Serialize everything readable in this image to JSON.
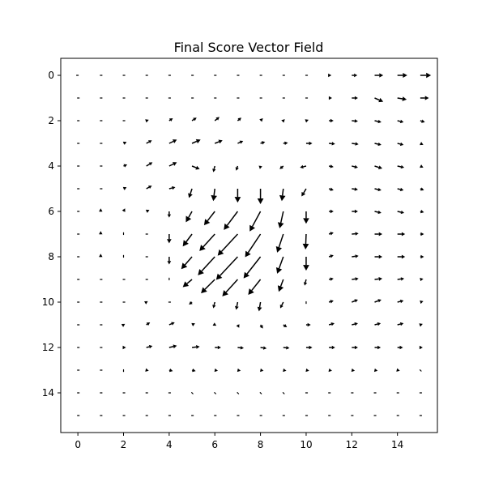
{
  "chart_data": {
    "type": "quiver",
    "title": "Final Score Vector Field",
    "xlabel": "",
    "ylabel": "",
    "xlim": [
      -0.75,
      15.75
    ],
    "ylim": [
      15.75,
      -0.75
    ],
    "y_inverted": true,
    "grid": false,
    "xticks": [
      0,
      2,
      4,
      6,
      8,
      10,
      12,
      14
    ],
    "yticks": [
      0,
      2,
      4,
      6,
      8,
      10,
      12,
      14
    ],
    "arrow_color": "#000000",
    "grid_size": [
      16,
      16
    ],
    "u": [
      [
        -0.05,
        0,
        0,
        0,
        0,
        0,
        0,
        0,
        0,
        0,
        0.03,
        0.08,
        0.18,
        0.28,
        0.32,
        0.35
      ],
      [
        0,
        0,
        0,
        0,
        0,
        0,
        0,
        0,
        0,
        0,
        0.03,
        0.1,
        0.2,
        0.28,
        0.3,
        0.28
      ],
      [
        0,
        0,
        0,
        0.08,
        0.12,
        0.15,
        0.15,
        0.12,
        0.08,
        0.05,
        0.08,
        0.15,
        0.2,
        0.22,
        0.2,
        0.15
      ],
      [
        0,
        0,
        0.1,
        0.18,
        0.25,
        0.28,
        0.25,
        0.18,
        0.15,
        0.15,
        0.2,
        0.2,
        0.22,
        0.22,
        0.2,
        0.1
      ],
      [
        0,
        0,
        0.12,
        0.2,
        0.25,
        0.25,
        -0.05,
        -0.05,
        -0.02,
        -0.12,
        -0.2,
        0.15,
        0.2,
        0.25,
        0.22,
        0.1
      ],
      [
        0,
        0,
        0.1,
        0.18,
        0.2,
        -0.1,
        -0.05,
        0,
        0,
        -0.05,
        -0.15,
        0.15,
        0.2,
        0.22,
        0.2,
        0.12
      ],
      [
        0,
        0,
        0.05,
        0.1,
        0,
        -0.2,
        -0.35,
        -0.45,
        -0.35,
        -0.12,
        0,
        0.15,
        0.2,
        0.22,
        0.22,
        0.12
      ],
      [
        0,
        0,
        0,
        0,
        0,
        -0.3,
        -0.5,
        -0.65,
        -0.5,
        -0.2,
        -0.02,
        0.15,
        0.22,
        0.25,
        0.25,
        0.12
      ],
      [
        0,
        0,
        0,
        0,
        0,
        -0.35,
        -0.55,
        -0.7,
        -0.55,
        -0.2,
        0,
        0.15,
        0.22,
        0.25,
        0.25,
        0.12
      ],
      [
        0,
        0,
        0,
        0,
        0,
        -0.3,
        -0.45,
        -0.5,
        -0.4,
        -0.15,
        -0.05,
        0.15,
        0.22,
        0.25,
        0.22,
        0.1
      ],
      [
        0,
        0,
        0,
        0.05,
        0,
        -0.1,
        -0.05,
        -0.05,
        -0.05,
        -0.1,
        0,
        0.15,
        0.2,
        0.22,
        0.2,
        0.1
      ],
      [
        0,
        0,
        0.05,
        0.12,
        0.18,
        0.1,
        0.05,
        0.05,
        0.08,
        0.12,
        0.15,
        0.18,
        0.2,
        0.2,
        0.2,
        0.08
      ],
      [
        0,
        0,
        0.08,
        0.2,
        0.25,
        0.25,
        0.2,
        0.2,
        0.2,
        0.2,
        0.2,
        0.2,
        0.2,
        0.2,
        0.18,
        0.08
      ],
      [
        0,
        0,
        0,
        0.08,
        0.12,
        0.12,
        0.1,
        0.1,
        0.1,
        0.1,
        0.1,
        0.1,
        0.1,
        0.1,
        0.08,
        0.02
      ],
      [
        0,
        0,
        0,
        0,
        0,
        0.02,
        0.02,
        0.02,
        0.02,
        0.02,
        0.03,
        0.03,
        0.03,
        0.03,
        0.02,
        0
      ],
      [
        0,
        0,
        0,
        0,
        0,
        0,
        0,
        0,
        0,
        0,
        0,
        0,
        0,
        0,
        0,
        0
      ]
    ],
    "v": [
      [
        0,
        0,
        0,
        0,
        0,
        0,
        0,
        0,
        0,
        0,
        0,
        0,
        0,
        0,
        0,
        0
      ],
      [
        0,
        0,
        0,
        0,
        0,
        0,
        0,
        0,
        0,
        0,
        0,
        0,
        0,
        -0.12,
        -0.05,
        0
      ],
      [
        0,
        0,
        0,
        0.03,
        0.08,
        0.1,
        0.12,
        0.1,
        0.08,
        0.05,
        0.03,
        0,
        -0.02,
        -0.05,
        -0.05,
        -0.05
      ],
      [
        0,
        0,
        0.05,
        0.1,
        0.12,
        0.12,
        0.1,
        0.08,
        0.05,
        0.02,
        0,
        -0.02,
        -0.03,
        -0.05,
        -0.05,
        -0.05
      ],
      [
        0,
        0,
        0.05,
        0.12,
        0.12,
        -0.1,
        -0.2,
        -0.15,
        -0.1,
        -0.1,
        -0.05,
        -0.03,
        -0.05,
        -0.08,
        -0.05,
        -0.05
      ],
      [
        0,
        0,
        0.05,
        0.1,
        0.05,
        -0.3,
        -0.4,
        -0.45,
        -0.5,
        -0.4,
        -0.25,
        -0.05,
        -0.03,
        -0.05,
        -0.05,
        -0.05
      ],
      [
        0,
        0.1,
        0.1,
        0.05,
        -0.2,
        -0.35,
        -0.45,
        -0.6,
        -0.65,
        -0.55,
        -0.4,
        0,
        0,
        -0.05,
        -0.05,
        -0.03
      ],
      [
        0,
        0.1,
        0.05,
        0,
        -0.3,
        -0.4,
        -0.55,
        -0.7,
        -0.75,
        -0.6,
        -0.5,
        0.05,
        0.02,
        0,
        0,
        0
      ],
      [
        0,
        0.1,
        0.05,
        0,
        -0.25,
        -0.4,
        -0.6,
        -0.75,
        -0.7,
        -0.55,
        -0.45,
        0.05,
        0.03,
        0,
        0,
        0
      ],
      [
        0,
        0,
        0,
        0,
        0.03,
        -0.25,
        -0.45,
        -0.55,
        -0.5,
        -0.4,
        -0.2,
        0.03,
        0.03,
        0.03,
        0.03,
        0.02
      ],
      [
        0,
        0,
        0,
        0.03,
        0,
        -0.08,
        -0.2,
        -0.25,
        -0.3,
        -0.2,
        -0.05,
        0.05,
        0.08,
        0.08,
        0.05,
        0.03
      ],
      [
        0,
        0,
        0.03,
        0.08,
        0.08,
        0.05,
        -0.03,
        -0.1,
        -0.12,
        -0.08,
        0,
        0.05,
        0.05,
        0.05,
        0.05,
        0.03
      ],
      [
        0,
        0,
        0,
        0.05,
        0.06,
        0.03,
        0,
        -0.02,
        -0.03,
        -0.02,
        0,
        0,
        0,
        0,
        0,
        0
      ],
      [
        0,
        0,
        -0.02,
        -0.02,
        -0.03,
        -0.03,
        -0.02,
        -0.02,
        -0.02,
        -0.02,
        -0.02,
        -0.02,
        -0.02,
        -0.02,
        -0.02,
        -0.02
      ],
      [
        0,
        0,
        0,
        0,
        0,
        -0.02,
        -0.02,
        -0.02,
        -0.02,
        -0.02,
        0,
        0,
        0,
        0,
        0,
        0
      ],
      [
        0,
        0,
        0,
        0,
        0,
        0,
        0,
        0,
        0,
        0,
        0,
        0,
        0,
        0,
        0,
        0
      ]
    ]
  }
}
